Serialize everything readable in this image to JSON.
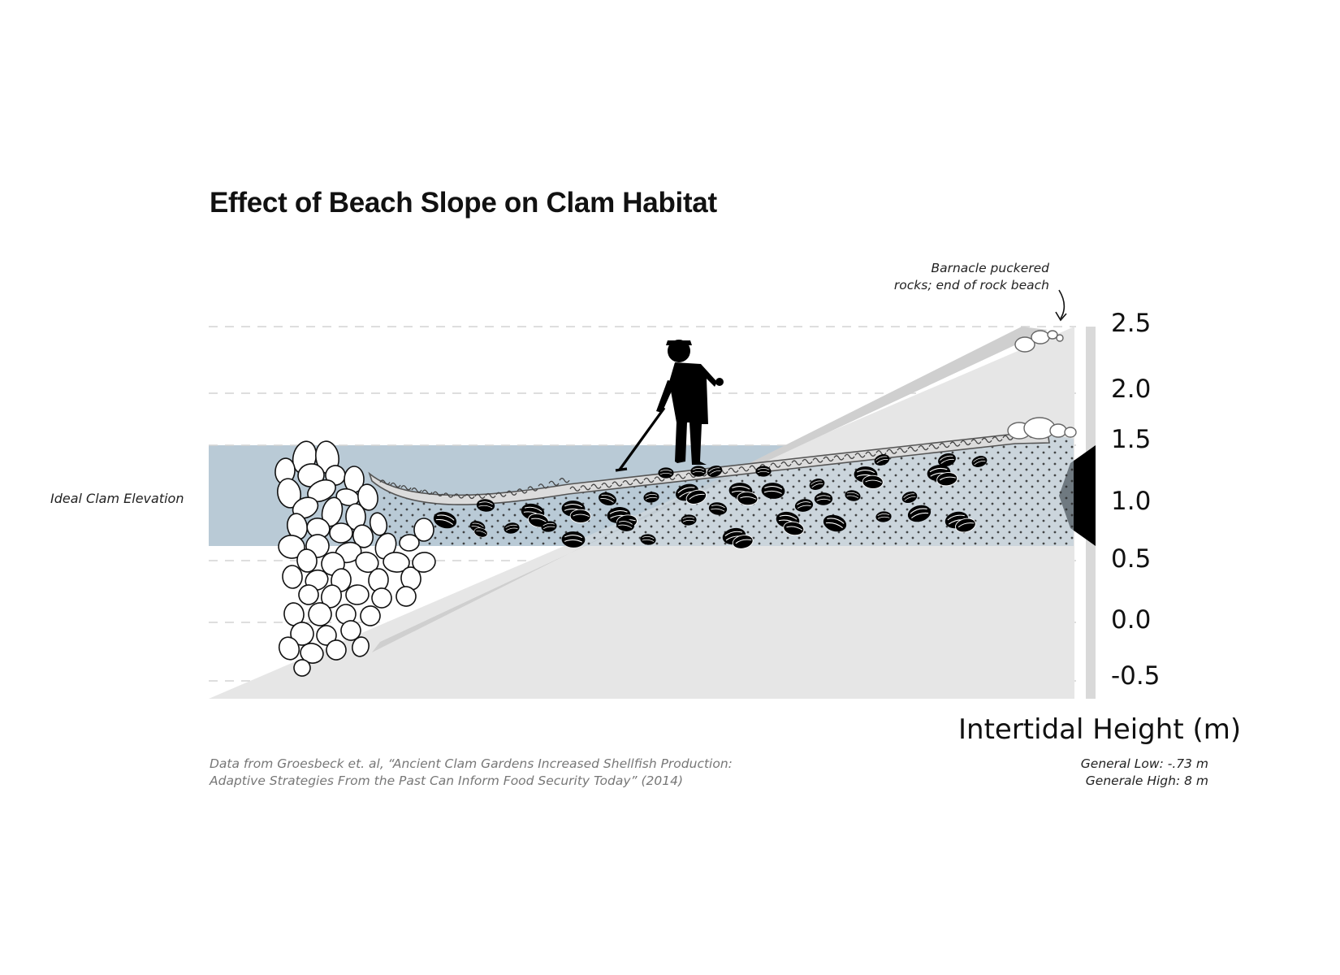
{
  "title": "Effect of Beach Slope on Clam Habitat",
  "zone_label": "Ideal Clam Elevation",
  "annotation": {
    "line1": "Barnacle puckered",
    "line2": "rocks; end of rock beach"
  },
  "axis": {
    "title": "Intertidal Height (m)",
    "ticks": [
      "2.5",
      "2.0",
      "1.5",
      "1.0",
      "0.5",
      "0.0",
      "-0.5"
    ]
  },
  "source": {
    "line1": "Data from Groesbeck et. al, “Ancient Clam Gardens Increased Shellfish Production:",
    "line2": "Adaptive Strategies From the Past Can Inform Food Security Today” (2014)"
  },
  "tide_range": {
    "low": "General Low: -.73 m",
    "high": "Generale High: 8 m"
  },
  "colors": {
    "ideal_zone": "#b9cad6",
    "slope_fill": "#e6e6e6",
    "slope_band": "#cfcfcf",
    "axis_bar": "#d9d9d9",
    "marker": "#000000",
    "gridline": "#d4d4d4"
  },
  "icons": [
    "person-digging-icon",
    "clam-icon",
    "rock-wall-icon",
    "barnacle-rock-icon",
    "arrow-down-icon"
  ]
}
